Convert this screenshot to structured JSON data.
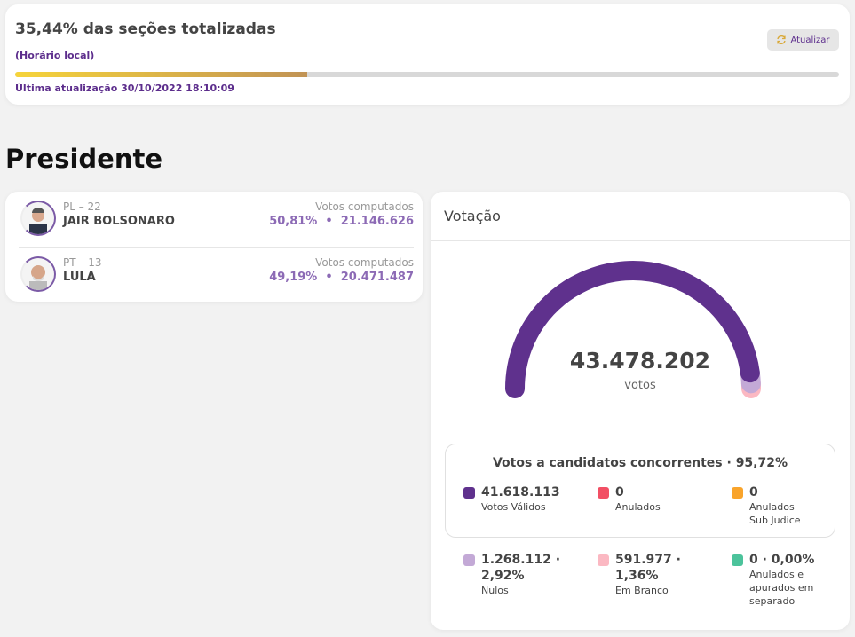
{
  "status": {
    "title": "35,44% das seções totalizadas",
    "subtitle": "(Horário local)",
    "progress_percent": 35.44,
    "last_update": "Última atualização 30/10/2022 18:10:09",
    "refresh_label": "Atualizar",
    "refresh_icon": "refresh-icon"
  },
  "section_title": "Presidente",
  "candidates": [
    {
      "party": "PL – 22",
      "name": "JAIR BOLSONARO",
      "votes_label": "Votos computados",
      "votes": "50,81%  •  21.146.626"
    },
    {
      "party": "PT – 13",
      "name": "LULA",
      "votes_label": "Votos computados",
      "votes": "49,19%  •  20.471.487"
    }
  ],
  "votacao": {
    "title": "Votação",
    "total": "43.478.202",
    "unit": "votos",
    "gauge_segments": [
      {
        "label": "Votos Válidos",
        "percent": 95.72,
        "color": "#5f318d"
      },
      {
        "label": "Nulos",
        "percent": 2.92,
        "color": "#c3a9d6"
      },
      {
        "label": "Em Branco",
        "percent": 1.36,
        "color": "#fbb8c2"
      }
    ],
    "box_title": "Votos a candidatos concorrentes · 95,72%",
    "legend": [
      {
        "value": "41.618.113",
        "label": "Votos Válidos",
        "color": "#5f318d"
      },
      {
        "value": "0",
        "label": "Anulados",
        "color": "#f24f64"
      },
      {
        "value": "0",
        "label": "Anulados Sub Judice",
        "color": "#f9a42b"
      },
      {
        "value": "1.268.112 · 2,92%",
        "label": "Nulos",
        "color": "#c3a9d6"
      },
      {
        "value": "591.977 · 1,36%",
        "label": "Em Branco",
        "color": "#fbb8c2"
      },
      {
        "value": "0 · 0,00%",
        "label": "Anulados e apurados em separado",
        "color": "#4cc39b"
      }
    ]
  }
}
